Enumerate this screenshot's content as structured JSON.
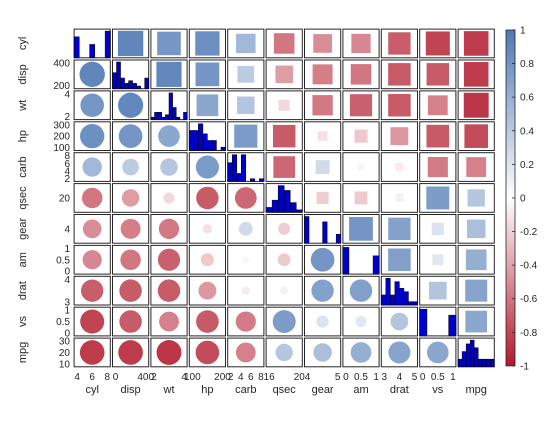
{
  "chart_data": {
    "type": "heatmap",
    "variables": [
      "cyl",
      "disp",
      "wt",
      "hp",
      "carb",
      "qsec",
      "gear",
      "am",
      "drat",
      "vs",
      "mpg"
    ],
    "correlation": [
      [
        1.0,
        0.9,
        0.78,
        0.83,
        0.53,
        -0.59,
        -0.49,
        -0.52,
        -0.7,
        -0.81,
        -0.85
      ],
      [
        0.9,
        1.0,
        0.89,
        0.79,
        0.39,
        -0.43,
        -0.56,
        -0.59,
        -0.71,
        -0.71,
        -0.85
      ],
      [
        0.78,
        0.89,
        1.0,
        0.66,
        0.43,
        -0.17,
        -0.58,
        -0.69,
        -0.71,
        -0.55,
        -0.87
      ],
      [
        0.83,
        0.79,
        0.66,
        1.0,
        0.75,
        -0.71,
        -0.13,
        -0.24,
        -0.45,
        -0.72,
        -0.78
      ],
      [
        0.53,
        0.39,
        0.43,
        0.75,
        1.0,
        -0.66,
        0.27,
        0.06,
        -0.09,
        -0.57,
        -0.55
      ],
      [
        -0.59,
        -0.43,
        -0.17,
        -0.71,
        -0.66,
        1.0,
        -0.21,
        -0.23,
        0.09,
        0.74,
        0.42
      ],
      [
        -0.49,
        -0.56,
        -0.58,
        -0.13,
        0.27,
        -0.21,
        1.0,
        0.79,
        0.7,
        0.21,
        0.48
      ],
      [
        -0.52,
        -0.59,
        -0.69,
        -0.24,
        0.06,
        -0.23,
        0.79,
        1.0,
        0.71,
        0.17,
        0.6
      ],
      [
        -0.7,
        -0.71,
        -0.71,
        -0.45,
        -0.09,
        0.09,
        0.7,
        0.71,
        1.0,
        0.44,
        0.68
      ],
      [
        -0.81,
        -0.71,
        -0.55,
        -0.72,
        -0.57,
        0.74,
        0.21,
        0.17,
        0.44,
        1.0,
        0.66
      ],
      [
        -0.85,
        -0.85,
        -0.87,
        -0.78,
        -0.55,
        0.42,
        0.48,
        0.6,
        0.68,
        0.66,
        1.0
      ]
    ],
    "upper_marker": "square",
    "lower_marker": "circle",
    "diagonal": "histogram",
    "histogram_counts": [
      [
        11,
        0,
        0,
        7,
        0,
        0,
        14
      ],
      [
        6,
        10,
        4,
        2,
        3,
        2,
        1,
        0,
        4
      ],
      [
        1,
        3,
        3,
        1,
        2,
        11,
        5,
        1,
        0,
        3
      ],
      [
        6,
        6,
        8,
        5,
        3,
        3,
        0,
        1
      ],
      [
        7,
        10,
        3,
        10,
        0,
        1,
        0,
        1
      ],
      [
        2,
        5,
        11,
        9,
        4,
        1
      ],
      [
        15,
        0,
        0,
        0,
        12,
        0,
        0,
        5
      ],
      [
        19,
        0,
        0,
        0,
        0,
        13
      ],
      [
        3,
        8,
        3,
        7,
        5,
        4,
        1,
        1
      ],
      [
        18,
        0,
        0,
        0,
        14
      ],
      [
        2,
        4,
        6,
        7,
        5,
        2,
        2,
        2,
        2
      ]
    ],
    "row_ticks": [
      [],
      [
        "400",
        "200"
      ],
      [
        "4",
        "2"
      ],
      [
        "300",
        "200",
        "100"
      ],
      [
        "8",
        "6",
        "4",
        "2"
      ],
      [
        "20"
      ],
      [
        "4"
      ],
      [
        "1",
        "0.5",
        "0"
      ],
      [
        "4",
        "3"
      ],
      [
        "1",
        "0.5",
        "0"
      ],
      [
        "30",
        "20",
        "10"
      ]
    ],
    "col_ticks": [
      [
        "4",
        "6",
        "8"
      ],
      [
        "0",
        "400"
      ],
      [
        "2",
        "4"
      ],
      [
        "100",
        "200"
      ],
      [
        "2",
        "4",
        "6",
        "8"
      ],
      [
        "16",
        "20"
      ],
      [
        "4",
        "5"
      ],
      [
        "0",
        "0.5",
        "1"
      ],
      [
        "3",
        "4",
        "5"
      ],
      [
        "0",
        "0.5",
        "1"
      ],
      []
    ],
    "colorbar": {
      "min": -1,
      "max": 1,
      "ticks": [
        "-1",
        "-0.8",
        "-0.6",
        "-0.4",
        "-0.2",
        "0",
        "0.2",
        "0.4",
        "0.6",
        "0.8",
        "1"
      ],
      "negative_color": "#b2182b",
      "neutral_color": "#ffffff",
      "positive_color": "#4f79b5"
    },
    "histogram_color": "#0000cd"
  }
}
